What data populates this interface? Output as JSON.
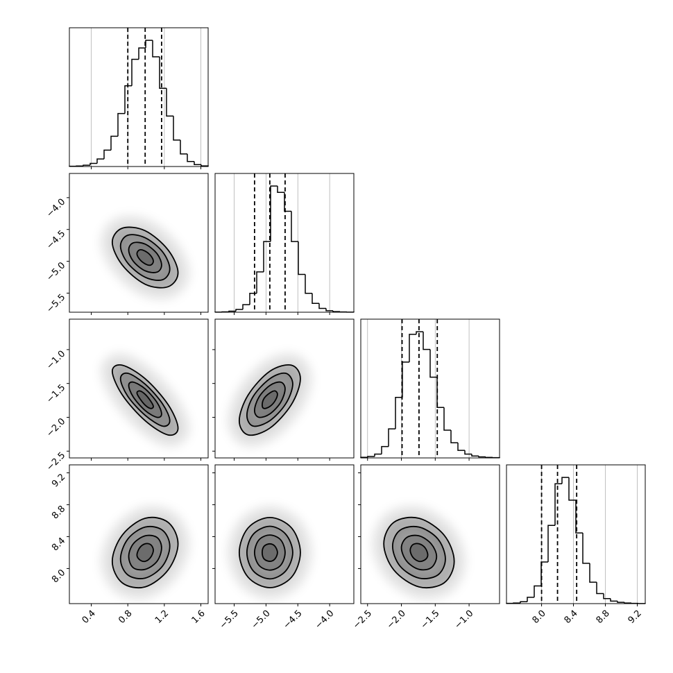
{
  "chart_data": {
    "type": "corner",
    "grid": true,
    "color": "#000000",
    "axes": [
      {
        "lim": [
          0.16,
          1.68
        ],
        "ticks": [
          0.4,
          0.8,
          1.2,
          1.6
        ],
        "bins": [
          0.16,
          0.236,
          0.312,
          0.388,
          0.464,
          0.54,
          0.616,
          0.692,
          0.768,
          0.844,
          0.92,
          0.996,
          1.072,
          1.148,
          1.224,
          1.3,
          1.376,
          1.452,
          1.528,
          1.604,
          1.68
        ],
        "counts": [
          2,
          4,
          10,
          25,
          60,
          130,
          240,
          420,
          640,
          850,
          940,
          1000,
          870,
          620,
          400,
          210,
          100,
          40,
          15,
          5
        ],
        "ylim": [
          0,
          1100
        ],
        "quantiles": [
          0.8,
          0.99,
          1.17
        ]
      },
      {
        "lim": [
          -5.8,
          -3.62
        ],
        "ticks": [
          {
            "value": -5.5,
            "label": "−5.5"
          },
          {
            "value": -5.0,
            "label": "−5.0"
          },
          {
            "value": -4.5,
            "label": "−4.5"
          },
          {
            "value": -4.0,
            "label": "−4.0"
          }
        ],
        "bins": [
          -5.8,
          -5.691,
          -5.582,
          -5.473,
          -5.364,
          -5.255,
          -5.146,
          -5.037,
          -4.928,
          -4.819,
          -4.71,
          -4.601,
          -4.492,
          -4.383,
          -4.274,
          -4.165,
          -4.056,
          -3.947,
          -3.838,
          -3.729,
          -3.62
        ],
        "counts": [
          1,
          3,
          8,
          22,
          60,
          150,
          320,
          560,
          1000,
          950,
          800,
          560,
          300,
          150,
          70,
          30,
          12,
          5,
          2,
          1
        ],
        "ylim": [
          0,
          1100
        ],
        "quantiles": [
          -5.18,
          -4.94,
          -4.7
        ]
      },
      {
        "lim": [
          -2.6,
          -0.55
        ],
        "ticks": [
          {
            "value": -2.5,
            "label": "−2.5"
          },
          {
            "value": -2.0,
            "label": "−2.0"
          },
          {
            "value": -1.5,
            "label": "−1.5"
          },
          {
            "value": -1.0,
            "label": "−1.0"
          }
        ],
        "bins": [
          -2.6,
          -2.4975,
          -2.395,
          -2.2925,
          -2.19,
          -2.0875,
          -1.985,
          -1.8825,
          -1.78,
          -1.6775,
          -1.575,
          -1.4725,
          -1.37,
          -1.2675,
          -1.165,
          -1.0625,
          -0.96,
          -0.8575,
          -0.755,
          -0.6525,
          -0.55
        ],
        "counts": [
          5,
          12,
          30,
          90,
          230,
          480,
          760,
          980,
          1000,
          860,
          640,
          400,
          220,
          120,
          60,
          30,
          15,
          8,
          4,
          2
        ],
        "ylim": [
          0,
          1100
        ],
        "quantiles": [
          -1.99,
          -1.74,
          -1.47
        ]
      },
      {
        "lim": [
          7.56,
          9.3
        ],
        "ticks": [
          {
            "value": 8.0,
            "label": "8.0"
          },
          8.4,
          8.8,
          9.2
        ],
        "bins": [
          7.56,
          7.647,
          7.734,
          7.821,
          7.908,
          7.995,
          8.082,
          8.169,
          8.256,
          8.343,
          8.43,
          8.517,
          8.604,
          8.691,
          8.778,
          8.865,
          8.952,
          9.039,
          9.126,
          9.213,
          9.3
        ],
        "counts": [
          2,
          5,
          15,
          50,
          140,
          330,
          620,
          950,
          1000,
          820,
          560,
          320,
          170,
          80,
          40,
          20,
          10,
          5,
          2,
          1
        ],
        "ylim": [
          0,
          1100
        ],
        "quantiles": [
          8.0,
          8.2,
          8.44
        ]
      }
    ],
    "pairs": [
      {
        "contours": [
          {
            "x": [
              1.08,
              1.05,
              0.99,
              0.93,
              0.9,
              0.93,
              0.99,
              1.05
            ],
            "y": [
              -5.0,
              -4.91,
              -4.84,
              -4.82,
              -4.88,
              -4.97,
              -5.04,
              -5.06
            ]
          },
          {
            "x": [
              1.17,
              1.12,
              0.99,
              0.86,
              0.81,
              0.86,
              0.99,
              1.12
            ],
            "y": [
              -5.06,
              -4.88,
              -4.73,
              -4.71,
              -4.82,
              -5.0,
              -5.15,
              -5.17
            ]
          },
          {
            "x": [
              1.26,
              1.18,
              0.99,
              0.8,
              0.72,
              0.8,
              0.99,
              1.18
            ],
            "y": [
              -5.12,
              -4.85,
              -4.63,
              -4.59,
              -4.76,
              -5.03,
              -5.25,
              -5.29
            ]
          },
          {
            "x": [
              1.35,
              1.24,
              0.99,
              0.74,
              0.63,
              0.74,
              0.99,
              1.24
            ],
            "y": [
              -5.18,
              -4.82,
              -4.52,
              -4.48,
              -4.7,
              -5.06,
              -5.36,
              -5.4
            ]
          }
        ]
      },
      {
        "contours": [
          {
            "x": [
              1.08,
              1.05,
              0.99,
              0.93,
              0.9,
              0.93,
              0.99,
              1.05
            ],
            "y": [
              -1.84,
              -1.76,
              -1.66,
              -1.61,
              -1.64,
              -1.72,
              -1.82,
              -1.87
            ]
          },
          {
            "x": [
              1.17,
              1.12,
              0.99,
              0.86,
              0.81,
              0.86,
              0.99,
              1.12
            ],
            "y": [
              -1.95,
              -1.78,
              -1.58,
              -1.48,
              -1.53,
              -1.7,
              -1.9,
              -2.0
            ]
          },
          {
            "x": [
              1.26,
              1.18,
              0.99,
              0.8,
              0.72,
              0.8,
              0.99,
              1.18
            ],
            "y": [
              -2.05,
              -1.8,
              -1.51,
              -1.35,
              -1.43,
              -1.69,
              -1.97,
              -2.13
            ]
          },
          {
            "x": [
              1.35,
              1.24,
              0.99,
              0.74,
              0.63,
              0.74,
              0.99,
              1.24
            ],
            "y": [
              -2.16,
              -1.81,
              -1.43,
              -1.23,
              -1.32,
              -1.67,
              -2.05,
              -2.26
            ]
          }
        ]
      },
      {
        "contours": [
          {
            "x": [
              -4.82,
              -4.86,
              -4.94,
              -5.03,
              -5.06,
              -5.03,
              -4.94,
              -4.86
            ],
            "y": [
              -1.66,
              -1.61,
              -1.64,
              -1.72,
              -1.82,
              -1.87,
              -1.84,
              -1.76
            ]
          },
          {
            "x": [
              -4.7,
              -4.77,
              -4.94,
              -5.11,
              -5.18,
              -5.11,
              -4.94,
              -4.77
            ],
            "y": [
              -1.58,
              -1.48,
              -1.53,
              -1.7,
              -1.9,
              -2.0,
              -1.95,
              -1.78
            ]
          },
          {
            "x": [
              -4.58,
              -4.69,
              -4.94,
              -5.2,
              -5.3,
              -5.2,
              -4.94,
              -4.69
            ],
            "y": [
              -1.51,
              -1.35,
              -1.43,
              -1.69,
              -1.97,
              -2.13,
              -2.05,
              -1.8
            ]
          },
          {
            "x": [
              -4.46,
              -4.6,
              -4.94,
              -5.28,
              -5.42,
              -5.28,
              -4.94,
              -4.6
            ],
            "y": [
              -1.43,
              -1.23,
              -1.32,
              -1.67,
              -2.05,
              -2.26,
              -2.16,
              -1.81
            ]
          }
        ]
      },
      {
        "contours": [
          {
            "x": [
              1.08,
              1.05,
              0.99,
              0.93,
              0.9,
              0.93,
              0.99,
              1.05
            ],
            "y": [
              8.23,
              8.3,
              8.31,
              8.26,
              8.17,
              8.11,
              8.09,
              8.14
            ]
          },
          {
            "x": [
              1.17,
              1.12,
              0.99,
              0.86,
              0.81,
              0.86,
              0.99,
              1.12
            ],
            "y": [
              8.26,
              8.39,
              8.41,
              8.31,
              8.15,
              8.01,
              7.99,
              8.09
            ]
          },
          {
            "x": [
              1.26,
              1.18,
              0.99,
              0.8,
              0.72,
              0.8,
              0.99,
              1.18
            ],
            "y": [
              8.28,
              8.48,
              8.52,
              8.37,
              8.12,
              7.92,
              7.88,
              8.03
            ]
          },
          {
            "x": [
              1.35,
              1.24,
              0.99,
              0.74,
              0.63,
              0.74,
              0.99,
              1.24
            ],
            "y": [
              8.31,
              8.58,
              8.63,
              8.42,
              8.09,
              7.82,
              7.77,
              7.98
            ]
          }
        ]
      },
      {
        "contours": [
          {
            "x": [
              -4.82,
              -4.86,
              -4.94,
              -5.03,
              -5.06,
              -5.03,
              -4.94,
              -4.86
            ],
            "y": [
              8.2,
              8.28,
              8.31,
              8.28,
              8.2,
              8.12,
              8.09,
              8.12
            ]
          },
          {
            "x": [
              -4.7,
              -4.77,
              -4.94,
              -5.11,
              -5.18,
              -5.11,
              -4.94,
              -4.77
            ],
            "y": [
              8.2,
              8.36,
              8.42,
              8.36,
              8.2,
              8.04,
              7.98,
              8.04
            ]
          },
          {
            "x": [
              -4.58,
              -4.69,
              -4.94,
              -5.2,
              -5.3,
              -5.2,
              -4.94,
              -4.69
            ],
            "y": [
              8.2,
              8.43,
              8.53,
              8.43,
              8.2,
              7.97,
              7.87,
              7.97
            ]
          },
          {
            "x": [
              -4.46,
              -4.6,
              -4.94,
              -5.28,
              -5.42,
              -5.28,
              -4.94,
              -4.6
            ],
            "y": [
              8.2,
              8.51,
              8.64,
              8.51,
              8.2,
              7.89,
              7.76,
              7.89
            ]
          }
        ]
      },
      {
        "contours": [
          {
            "x": [
              -1.61,
              -1.65,
              -1.74,
              -1.83,
              -1.87,
              -1.83,
              -1.74,
              -1.65
            ],
            "y": [
              8.17,
              8.26,
              8.31,
              8.3,
              8.23,
              8.14,
              8.09,
              8.11
            ]
          },
          {
            "x": [
              -1.48,
              -1.56,
              -1.74,
              -1.92,
              -2.0,
              -1.92,
              -1.74,
              -1.56
            ],
            "y": [
              8.15,
              8.31,
              8.41,
              8.39,
              8.26,
              8.09,
              7.99,
              8.01
            ]
          },
          {
            "x": [
              -1.35,
              -1.46,
              -1.74,
              -2.02,
              -2.13,
              -2.02,
              -1.74,
              -1.46
            ],
            "y": [
              8.12,
              8.37,
              8.52,
              8.48,
              8.28,
              8.03,
              7.88,
              7.92
            ]
          },
          {
            "x": [
              -1.22,
              -1.37,
              -1.74,
              -2.11,
              -2.26,
              -2.11,
              -1.74,
              -1.37
            ],
            "y": [
              8.09,
              8.42,
              8.63,
              8.58,
              8.31,
              7.98,
              7.77,
              7.82
            ]
          }
        ]
      }
    ]
  }
}
